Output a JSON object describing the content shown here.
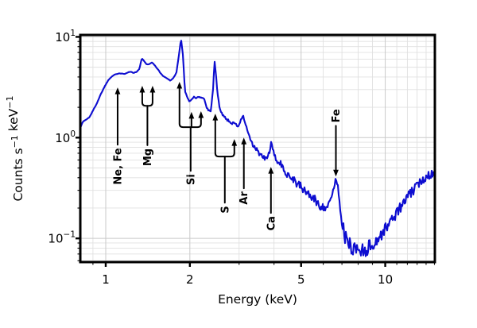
{
  "chart_data": {
    "type": "line",
    "title": "",
    "xlabel": "Energy (keV)",
    "ylabel": "Counts s⁻¹ keV⁻¹",
    "ylabel_segments": [
      {
        "t": "Counts s"
      },
      {
        "t": "−1",
        "sup": true
      },
      {
        "t": " keV"
      },
      {
        "t": "−1",
        "sup": true
      }
    ],
    "xscale": "log",
    "yscale": "log",
    "xlim": [
      0.811,
      15.05
    ],
    "ylim": [
      0.0582,
      10.45
    ],
    "grid": true,
    "legend": "none",
    "line_color": "#0d0dd0",
    "frame_color": "#000000",
    "grid_major_color": "#c9c9c9",
    "grid_minor_color": "#e0e0e0",
    "xticks": [
      {
        "v": 1,
        "label": "1"
      },
      {
        "v": 2,
        "label": "2"
      },
      {
        "v": 5,
        "label": "5"
      },
      {
        "v": 10,
        "label": "10"
      }
    ],
    "xticks_minor": [
      0.9,
      3,
      4,
      6,
      7,
      8,
      9,
      11,
      12,
      13,
      14,
      15
    ],
    "yticks": [
      {
        "v": 0.1,
        "base": "10",
        "exp": "−1"
      },
      {
        "v": 1,
        "base": "10",
        "exp": "0"
      },
      {
        "v": 10,
        "base": "10",
        "exp": "1"
      }
    ],
    "yticks_minor": [
      0.06,
      0.07,
      0.08,
      0.09,
      0.2,
      0.3,
      0.4,
      0.5,
      0.6,
      0.7,
      0.8,
      0.9,
      2,
      3,
      4,
      5,
      6,
      7,
      8,
      9
    ],
    "series": [
      {
        "name": "spectrum",
        "points": [
          [
            0.81,
            1.25
          ],
          [
            0.83,
            1.45
          ],
          [
            0.855,
            1.52
          ],
          [
            0.875,
            1.6
          ],
          [
            0.9,
            1.85
          ],
          [
            0.93,
            2.2
          ],
          [
            0.96,
            2.7
          ],
          [
            0.99,
            3.2
          ],
          [
            1.02,
            3.7
          ],
          [
            1.05,
            4.05
          ],
          [
            1.08,
            4.25
          ],
          [
            1.11,
            4.3
          ],
          [
            1.14,
            4.35
          ],
          [
            1.17,
            4.3
          ],
          [
            1.2,
            4.45
          ],
          [
            1.23,
            4.5
          ],
          [
            1.26,
            4.4
          ],
          [
            1.29,
            4.5
          ],
          [
            1.32,
            4.8
          ],
          [
            1.345,
            6.1
          ],
          [
            1.37,
            5.8
          ],
          [
            1.4,
            5.3
          ],
          [
            1.43,
            5.35
          ],
          [
            1.46,
            5.6
          ],
          [
            1.5,
            5.2
          ],
          [
            1.55,
            4.6
          ],
          [
            1.6,
            4.1
          ],
          [
            1.65,
            3.9
          ],
          [
            1.7,
            3.7
          ],
          [
            1.74,
            3.85
          ],
          [
            1.79,
            4.4
          ],
          [
            1.83,
            6.8
          ],
          [
            1.86,
            9.6
          ],
          [
            1.89,
            6.5
          ],
          [
            1.92,
            2.9
          ],
          [
            1.96,
            2.5
          ],
          [
            1.99,
            2.28
          ],
          [
            2.03,
            2.4
          ],
          [
            2.07,
            2.55
          ],
          [
            2.1,
            2.45
          ],
          [
            2.14,
            2.55
          ],
          [
            2.19,
            2.5
          ],
          [
            2.25,
            2.45
          ],
          [
            2.3,
            1.95
          ],
          [
            2.37,
            1.78
          ],
          [
            2.42,
            2.9
          ],
          [
            2.45,
            5.8
          ],
          [
            2.48,
            4.2
          ],
          [
            2.52,
            2.5
          ],
          [
            2.56,
            1.95
          ],
          [
            2.62,
            1.7
          ],
          [
            2.68,
            1.55
          ],
          [
            2.73,
            1.5
          ],
          [
            2.78,
            1.44
          ],
          [
            2.82,
            1.36
          ],
          [
            2.86,
            1.46
          ],
          [
            2.9,
            1.38
          ],
          [
            2.95,
            1.3
          ],
          [
            3.0,
            1.32
          ],
          [
            3.06,
            1.55
          ],
          [
            3.1,
            1.66
          ],
          [
            3.15,
            1.4
          ],
          [
            3.22,
            1.16
          ],
          [
            3.3,
            0.92
          ],
          [
            3.4,
            0.8
          ],
          [
            3.5,
            0.73
          ],
          [
            3.6,
            0.66
          ],
          [
            3.7,
            0.62
          ],
          [
            3.78,
            0.63
          ],
          [
            3.84,
            0.7
          ],
          [
            3.9,
            0.88
          ],
          [
            3.96,
            0.75
          ],
          [
            4.03,
            0.64
          ],
          [
            4.12,
            0.58
          ],
          [
            4.25,
            0.52
          ],
          [
            4.4,
            0.465
          ],
          [
            4.55,
            0.42
          ],
          [
            4.7,
            0.385
          ],
          [
            4.85,
            0.35
          ],
          [
            5.0,
            0.32
          ],
          [
            5.2,
            0.29
          ],
          [
            5.4,
            0.265
          ],
          [
            5.6,
            0.24
          ],
          [
            5.8,
            0.215
          ],
          [
            5.95,
            0.205
          ],
          [
            6.05,
            0.21
          ],
          [
            6.15,
            0.205
          ],
          [
            6.25,
            0.21
          ],
          [
            6.38,
            0.235
          ],
          [
            6.5,
            0.3
          ],
          [
            6.6,
            0.36
          ],
          [
            6.68,
            0.38
          ],
          [
            6.76,
            0.33
          ],
          [
            6.85,
            0.25
          ],
          [
            6.95,
            0.17
          ],
          [
            7.05,
            0.125
          ],
          [
            7.2,
            0.1
          ],
          [
            7.4,
            0.088
          ],
          [
            7.6,
            0.082
          ],
          [
            7.8,
            0.08
          ],
          [
            8.0,
            0.078
          ],
          [
            8.2,
            0.076
          ],
          [
            8.4,
            0.078
          ],
          [
            8.6,
            0.08
          ],
          [
            8.8,
            0.082
          ],
          [
            9.0,
            0.086
          ],
          [
            9.2,
            0.092
          ],
          [
            9.5,
            0.1
          ],
          [
            9.8,
            0.115
          ],
          [
            10.1,
            0.13
          ],
          [
            10.5,
            0.15
          ],
          [
            10.9,
            0.175
          ],
          [
            11.3,
            0.2
          ],
          [
            11.7,
            0.23
          ],
          [
            12.1,
            0.265
          ],
          [
            12.6,
            0.3
          ],
          [
            13.1,
            0.34
          ],
          [
            13.6,
            0.385
          ],
          [
            14.1,
            0.42
          ],
          [
            14.6,
            0.44
          ],
          [
            15.05,
            0.455
          ]
        ]
      }
    ],
    "noise_segments": [
      {
        "from": 0.8,
        "to": 2.3,
        "sigma": 0.003
      },
      {
        "from": 2.3,
        "to": 3.3,
        "sigma": 0.012
      },
      {
        "from": 3.3,
        "to": 4.2,
        "sigma": 0.025
      },
      {
        "from": 4.2,
        "to": 6.1,
        "sigma": 0.045
      },
      {
        "from": 6.1,
        "to": 7.0,
        "sigma": 0.035
      },
      {
        "from": 7.0,
        "to": 9.5,
        "sigma": 0.08
      },
      {
        "from": 9.5,
        "to": 12.0,
        "sigma": 0.055
      },
      {
        "from": 12.0,
        "to": 15.2,
        "sigma": 0.045
      }
    ],
    "annotations": [
      {
        "label": "Ne, Fe",
        "dir": "up",
        "tail": 0.85,
        "arms": [
          {
            "x": 1.103,
            "tip": 3.15
          }
        ]
      },
      {
        "label": "Mg",
        "dir": "up",
        "tail": 0.84,
        "join": 2.07,
        "arms": [
          {
            "x": 1.351,
            "tip": 3.27
          },
          {
            "x": 1.471,
            "tip": 3.27
          }
        ]
      },
      {
        "label": "Si",
        "dir": "up",
        "tail": 0.468,
        "join": 1.27,
        "arms": [
          {
            "x": 1.836,
            "tip": 3.58
          },
          {
            "x": 2.027,
            "tip": 1.8
          },
          {
            "x": 2.192,
            "tip": 1.83
          }
        ]
      },
      {
        "label": "S",
        "dir": "up",
        "tail": 0.226,
        "join": 0.649,
        "arms": [
          {
            "x": 2.466,
            "tip": 1.73
          },
          {
            "x": 2.885,
            "tip": 0.968
          }
        ]
      },
      {
        "label": "Ar",
        "dir": "up",
        "tail": 0.314,
        "arms": [
          {
            "x": 3.12,
            "tip": 1.0
          }
        ]
      },
      {
        "label": "Ca",
        "dir": "up",
        "tail": 0.179,
        "arms": [
          {
            "x": 3.9,
            "tip": 0.512
          }
        ]
      },
      {
        "label": "Fe",
        "dir": "down",
        "tail": 1.31,
        "arms": [
          {
            "x": 6.66,
            "tip": 0.411
          }
        ]
      }
    ]
  }
}
